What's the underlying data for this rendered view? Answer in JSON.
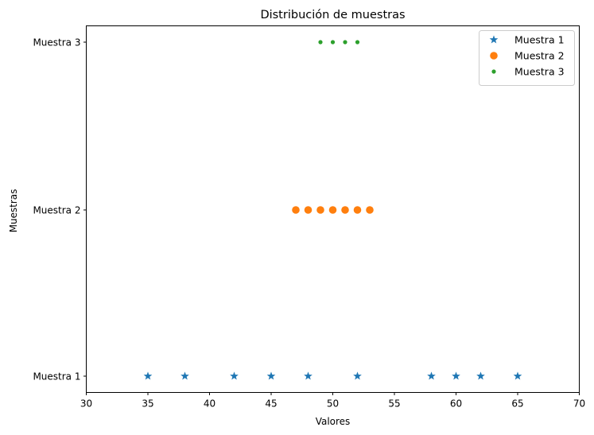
{
  "chart_data": {
    "type": "scatter",
    "title": "Distribución de muestras",
    "xlabel": "Valores",
    "ylabel": "Muestras",
    "xlim": [
      30,
      70
    ],
    "xticks": [
      30,
      35,
      40,
      45,
      50,
      55,
      60,
      65,
      70
    ],
    "categories": [
      "Muestra 1",
      "Muestra 2",
      "Muestra 3"
    ],
    "grid": false,
    "legend_position": "top-right",
    "series": [
      {
        "name": "Muestra 1",
        "marker": "star",
        "color": "#1f77b4",
        "category": "Muestra 1",
        "x": [
          35,
          38,
          42,
          45,
          48,
          52,
          58,
          60,
          62,
          65
        ]
      },
      {
        "name": "Muestra 2",
        "marker": "circle",
        "color": "#ff7f0e",
        "category": "Muestra 2",
        "x": [
          47,
          48,
          49,
          50,
          51,
          52,
          53
        ]
      },
      {
        "name": "Muestra 3",
        "marker": "point",
        "color": "#2ca02c",
        "category": "Muestra 3",
        "x": [
          49,
          50,
          51,
          52
        ]
      }
    ]
  }
}
